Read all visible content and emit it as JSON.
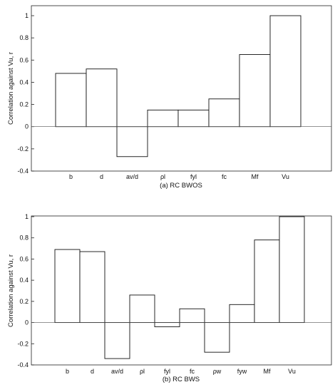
{
  "chart_data": [
    {
      "type": "bar",
      "caption": "(a) RC BWOS",
      "ylabel": "Correlation against Vu, r",
      "ylim": [
        -0.4,
        1.0
      ],
      "yticks": [
        "-0.4",
        "-0.2",
        "0",
        "0.2",
        "0.4",
        "0.6",
        "0.8",
        "1"
      ],
      "categories": [
        "b",
        "d",
        "av/d",
        "ρl",
        "fyl",
        "fc",
        "Mf",
        "Vu"
      ],
      "values": [
        0.48,
        0.52,
        -0.27,
        0.15,
        0.15,
        0.25,
        0.65,
        1.0
      ],
      "grid": false
    },
    {
      "type": "bar",
      "caption": "(b) RC BWS",
      "ylabel": "Correlation against Vu, r",
      "ylim": [
        -0.4,
        1.0
      ],
      "yticks": [
        "-0.4",
        "-0.2",
        "0",
        "0.2",
        "0.4",
        "0.6",
        "0.8",
        "1"
      ],
      "categories": [
        "b",
        "d",
        "av/d",
        "ρl",
        "fyl",
        "fc",
        "ρw",
        "fyw",
        "Mf",
        "Vu"
      ],
      "values": [
        0.69,
        0.67,
        -0.34,
        0.26,
        -0.04,
        0.13,
        -0.28,
        0.17,
        0.78,
        1.0
      ],
      "grid": false
    }
  ]
}
